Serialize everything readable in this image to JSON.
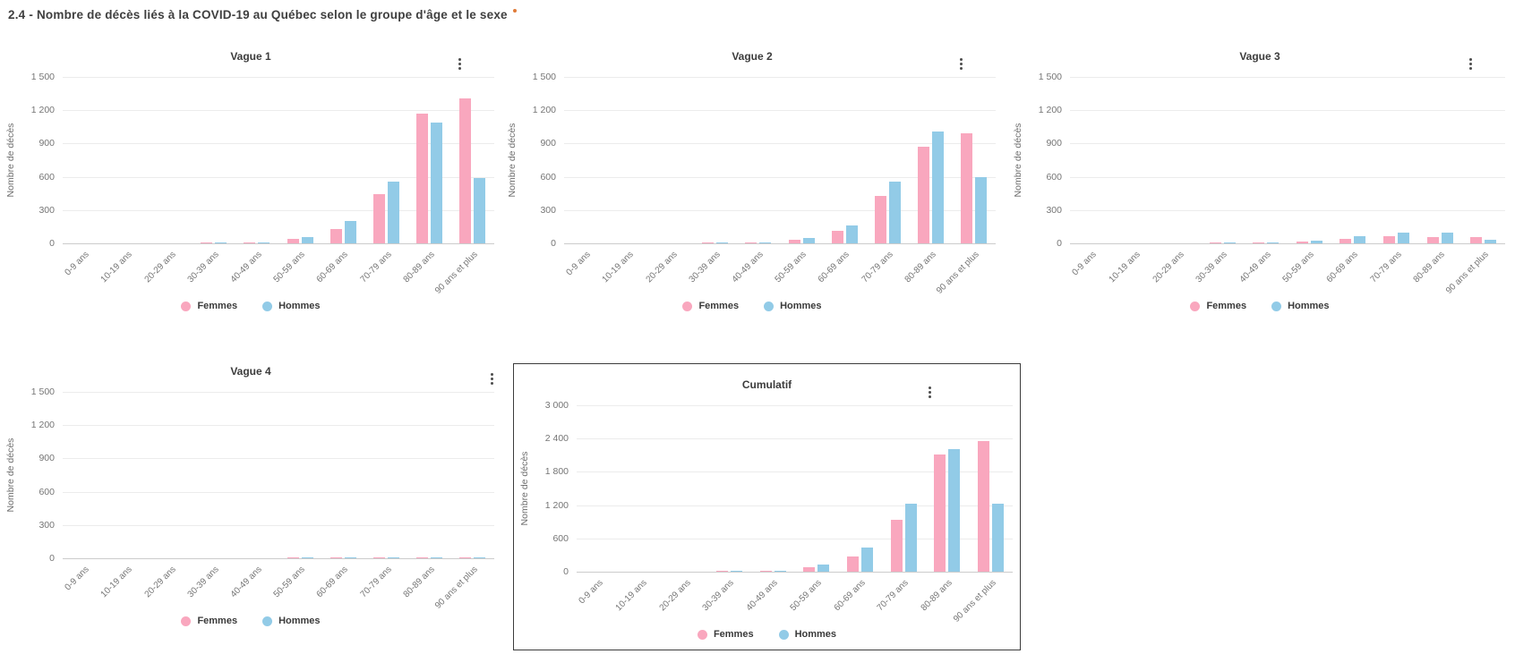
{
  "page": {
    "title": "2.4 - Nombre de décès liés à la COVID-19 au Québec selon le groupe d'âge et le sexe"
  },
  "colors": {
    "femmes": "#F9A7BE",
    "hommes": "#92CBE7",
    "grid": "#ECECEC",
    "axis_text": "#757575",
    "title_text": "#3C3C3C",
    "accent_dot": "#E07B39",
    "highlight_border": "#3C3C3C"
  },
  "chart_data": [
    {
      "type": "bar",
      "title": "Vague 1",
      "ylabel": "Nombre de décès",
      "xlabel": "",
      "ylim": [
        0,
        1500
      ],
      "yticks": [
        "1 500",
        "1 200",
        "900",
        "600",
        "300",
        "0"
      ],
      "grid": true,
      "legend_position": "bottom",
      "highlighted": false,
      "categories": [
        "0-9 ans",
        "10-19 ans",
        "20-29 ans",
        "30-39 ans",
        "40-49 ans",
        "50-59 ans",
        "60-69 ans",
        "70-79 ans",
        "80-89 ans",
        "90 ans et plus"
      ],
      "series": [
        {
          "name": "Femmes",
          "color": "#F9A7BE",
          "values": [
            0,
            0,
            0,
            2,
            8,
            40,
            130,
            440,
            1170,
            1310
          ]
        },
        {
          "name": "Hommes",
          "color": "#92CBE7",
          "values": [
            0,
            0,
            0,
            2,
            12,
            55,
            205,
            560,
            1090,
            590
          ]
        }
      ]
    },
    {
      "type": "bar",
      "title": "Vague 2",
      "ylabel": "Nombre de décès",
      "xlabel": "",
      "ylim": [
        0,
        1500
      ],
      "yticks": [
        "1 500",
        "1 200",
        "900",
        "600",
        "300",
        "0"
      ],
      "grid": true,
      "legend_position": "bottom",
      "highlighted": false,
      "categories": [
        "0-9 ans",
        "10-19 ans",
        "20-29 ans",
        "30-39 ans",
        "40-49 ans",
        "50-59 ans",
        "60-69 ans",
        "70-79 ans",
        "80-89 ans",
        "90 ans et plus"
      ],
      "series": [
        {
          "name": "Femmes",
          "color": "#F9A7BE",
          "values": [
            0,
            0,
            0,
            2,
            10,
            30,
            110,
            425,
            875,
            990
          ]
        },
        {
          "name": "Hommes",
          "color": "#92CBE7",
          "values": [
            0,
            0,
            0,
            2,
            5,
            45,
            165,
            555,
            1010,
            595
          ]
        }
      ]
    },
    {
      "type": "bar",
      "title": "Vague 3",
      "ylabel": "Nombre de décès",
      "xlabel": "",
      "ylim": [
        0,
        1500
      ],
      "yticks": [
        "1 500",
        "1 200",
        "900",
        "600",
        "300",
        "0"
      ],
      "grid": true,
      "legend_position": "bottom",
      "highlighted": false,
      "categories": [
        "0-9 ans",
        "10-19 ans",
        "20-29 ans",
        "30-39 ans",
        "40-49 ans",
        "50-59 ans",
        "60-69 ans",
        "70-79 ans",
        "80-89 ans",
        "90 ans et plus"
      ],
      "series": [
        {
          "name": "Femmes",
          "color": "#F9A7BE",
          "values": [
            0,
            0,
            0,
            1,
            3,
            15,
            40,
            65,
            60,
            55
          ]
        },
        {
          "name": "Hommes",
          "color": "#92CBE7",
          "values": [
            0,
            0,
            0,
            1,
            5,
            25,
            65,
            100,
            95,
            35
          ]
        }
      ]
    },
    {
      "type": "bar",
      "title": "Vague 4",
      "ylabel": "Nombre de décès",
      "xlabel": "",
      "ylim": [
        0,
        1500
      ],
      "yticks": [
        "1 500",
        "1 200",
        "900",
        "600",
        "300",
        "0"
      ],
      "grid": true,
      "legend_position": "bottom",
      "highlighted": false,
      "categories": [
        "0-9 ans",
        "10-19 ans",
        "20-29 ans",
        "30-39 ans",
        "40-49 ans",
        "50-59 ans",
        "60-69 ans",
        "70-79 ans",
        "80-89 ans",
        "90 ans et plus"
      ],
      "series": [
        {
          "name": "Femmes",
          "color": "#F9A7BE",
          "values": [
            0,
            0,
            0,
            0,
            0,
            2,
            2,
            5,
            8,
            6
          ]
        },
        {
          "name": "Hommes",
          "color": "#92CBE7",
          "values": [
            0,
            0,
            0,
            0,
            0,
            2,
            4,
            8,
            10,
            5
          ]
        }
      ]
    },
    {
      "type": "bar",
      "title": "Cumulatif",
      "ylabel": "Nombre de décès",
      "xlabel": "",
      "ylim": [
        0,
        3000
      ],
      "yticks": [
        "3 000",
        "2 400",
        "1 800",
        "1 200",
        "600",
        "0"
      ],
      "grid": true,
      "legend_position": "bottom",
      "highlighted": true,
      "categories": [
        "0-9 ans",
        "10-19 ans",
        "20-29 ans",
        "30-39 ans",
        "40-49 ans",
        "50-59 ans",
        "60-69 ans",
        "70-79 ans",
        "80-89 ans",
        "90 ans et plus"
      ],
      "series": [
        {
          "name": "Femmes",
          "color": "#F9A7BE",
          "values": [
            0,
            0,
            0,
            5,
            21,
            87,
            282,
            935,
            2113,
            2361
          ]
        },
        {
          "name": "Hommes",
          "color": "#92CBE7",
          "values": [
            0,
            0,
            0,
            5,
            22,
            127,
            439,
            1223,
            2205,
            1225
          ]
        }
      ]
    }
  ]
}
